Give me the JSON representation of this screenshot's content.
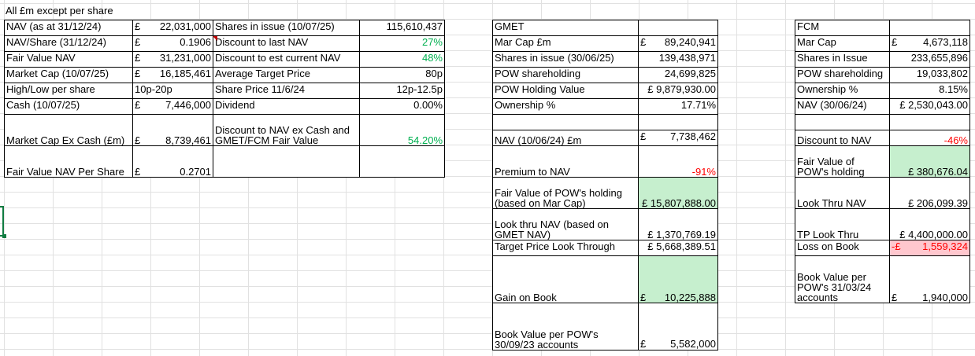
{
  "header": "All £m except per share",
  "block1": {
    "rows": [
      {
        "label": "NAV (as at 31/12/24)",
        "cur": "£",
        "value": "22,031,000"
      },
      {
        "label": "NAV/Share (31/12/24)",
        "cur": "£",
        "value": "0.1906"
      },
      {
        "label": "Fair Value NAV",
        "cur": "£",
        "value": "31,231,000"
      },
      {
        "label": "Market Cap (10/07/25)",
        "cur": "£",
        "value": "16,185,461"
      },
      {
        "label": "High/Low per share",
        "cur": "10p-20p",
        "value": ""
      },
      {
        "label": "Cash (10/07/25)",
        "cur": "£",
        "value": "7,446,000"
      },
      {
        "label": "Market Cap Ex Cash (£m)",
        "cur": "£",
        "value": "8,739,461"
      },
      {
        "label": "Fair Value NAV Per Share",
        "cur": "£",
        "value": "0.2701"
      }
    ]
  },
  "block2": {
    "rows": [
      {
        "label": "Shares in issue (10/07/25)",
        "value": "115,610,437"
      },
      {
        "label": "Discount to last NAV",
        "value": "27%"
      },
      {
        "label": "Discount to est current NAV",
        "value": "48%"
      },
      {
        "label": "Average Target Price",
        "value": "80p"
      },
      {
        "label": "Share Price 11/6/24",
        "value": "12p-12.5p"
      },
      {
        "label": "Dividend",
        "value": "0.00%"
      },
      {
        "label_line1": "Discount to NAV ex Cash and",
        "label_line2": "GMET/FCM Fair Value",
        "value": "54.20%"
      }
    ],
    "colors": {
      "green": "#00b050"
    }
  },
  "gmet": {
    "title": "GMET",
    "rows": [
      {
        "label": "Mar Cap £m",
        "cur": "£",
        "value": "89,240,941"
      },
      {
        "label": "Shares in issue (30/06/25)",
        "value": "139,438,971"
      },
      {
        "label": "POW shareholding",
        "value": "24,699,825"
      },
      {
        "label": "POW Holding Value",
        "value": "£ 9,879,930.00"
      },
      {
        "label": "Ownership %",
        "value": "17.71%"
      },
      {
        "label": "NAV (10/06/24) £m",
        "cur": "£",
        "value": "7,738,462"
      },
      {
        "label": "Premium to NAV",
        "value": "-91%"
      },
      {
        "label_line1": "Fair Value of POW's holding",
        "label_line2": "(based on Mar Cap)",
        "value": "£ 15,807,888.00"
      },
      {
        "label_line1": "Look thru NAV (based on",
        "label_line2": "GMET NAV)",
        "value": "£ 1,370,769.19"
      },
      {
        "label": "Target Price Look Through",
        "value": "£ 5,668,389.51"
      },
      {
        "label": "Gain on Book",
        "cur": "£",
        "value": "10,225,888"
      },
      {
        "label_line1": "Book Value per POW's",
        "label_line2": "30/09/23 accounts",
        "cur": "£",
        "value": "5,582,000"
      }
    ]
  },
  "fcm": {
    "title": "FCM",
    "rows": [
      {
        "label": "Mar Cap",
        "cur": "£",
        "value": "4,673,118"
      },
      {
        "label": "Shares in Issue",
        "value": "233,655,896"
      },
      {
        "label": "POW shareholding",
        "value": "19,033,802"
      },
      {
        "label": "Ownership %",
        "value": "8.15%"
      },
      {
        "label": "NAV  (30/06/24)",
        "value": "£ 2,530,043.00"
      },
      {
        "label": "Discount to NAV",
        "value": "-46%"
      },
      {
        "label_line1": "Fair Value of",
        "label_line2": "POW's holding",
        "value": "£  380,676.04"
      },
      {
        "label": "Look Thru NAV",
        "value": "£  206,099.39"
      },
      {
        "label": "TP Look Thru",
        "value": "£ 4,400,000.00"
      },
      {
        "label": "Loss on Book",
        "cur": "-£",
        "value": "1,559,324"
      },
      {
        "label_line1": "Book Value per",
        "label_line2": "POW's 31/03/24",
        "label_line3": "accounts",
        "cur": "£",
        "value": "1,940,000"
      }
    ]
  },
  "colors": {
    "green_fill": "#c6efce",
    "red_fill": "#ffc7ce",
    "green_text": "#00b050",
    "red_text": "#ff0000",
    "selection": "#107c41"
  }
}
